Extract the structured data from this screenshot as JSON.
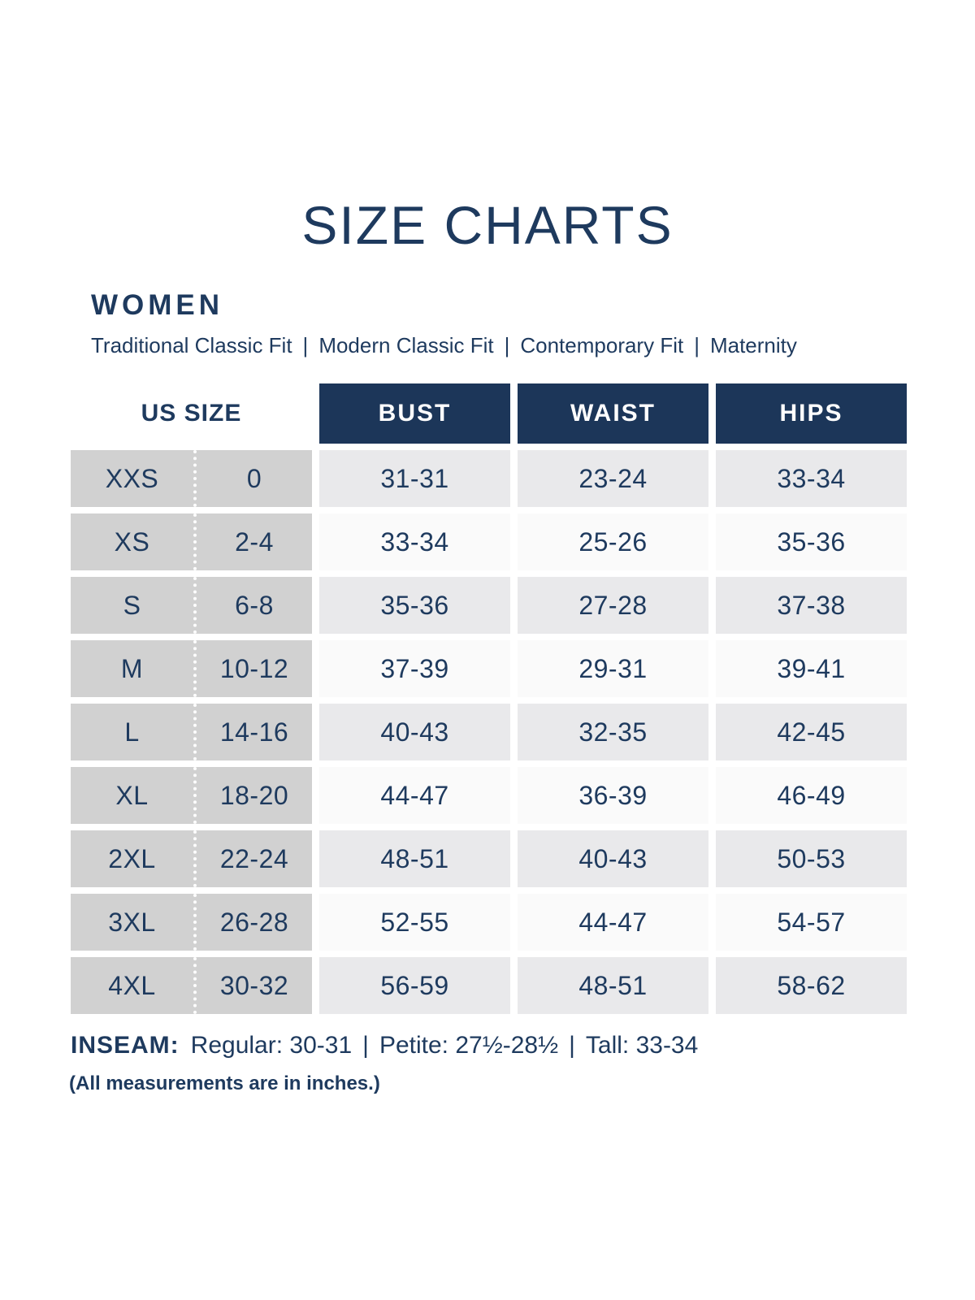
{
  "page": {
    "title": "SIZE CHARTS",
    "section_heading": "WOMEN",
    "separator": "|",
    "fit_types": [
      "Traditional Classic Fit",
      "Modern Classic Fit",
      "Contemporary Fit",
      "Maternity"
    ],
    "inseam_label": "INSEAM:",
    "inseam_regular": "Regular: 30-31",
    "inseam_petite": "Petite: 27½-28½",
    "inseam_tall": "Tall: 33-34",
    "note": "(All measurements are in inches.)"
  },
  "chart_data": {
    "type": "table",
    "title": "SIZE CHARTS",
    "section": "WOMEN",
    "fit_types": [
      "Traditional Classic Fit",
      "Modern Classic Fit",
      "Contemporary Fit",
      "Maternity"
    ],
    "column_headers": {
      "size": "US SIZE",
      "bust": "BUST",
      "waist": "WAIST",
      "hips": "HIPS"
    },
    "rows": [
      {
        "size": "XXS",
        "us": "0",
        "bust": "31-31",
        "waist": "23-24",
        "hips": "33-34"
      },
      {
        "size": "XS",
        "us": "2-4",
        "bust": "33-34",
        "waist": "25-26",
        "hips": "35-36"
      },
      {
        "size": "S",
        "us": "6-8",
        "bust": "35-36",
        "waist": "27-28",
        "hips": "37-38"
      },
      {
        "size": "M",
        "us": "10-12",
        "bust": "37-39",
        "waist": "29-31",
        "hips": "39-41"
      },
      {
        "size": "L",
        "us": "14-16",
        "bust": "40-43",
        "waist": "32-35",
        "hips": "42-45"
      },
      {
        "size": "XL",
        "us": "18-20",
        "bust": "44-47",
        "waist": "36-39",
        "hips": "46-49"
      },
      {
        "size": "2XL",
        "us": "22-24",
        "bust": "48-51",
        "waist": "40-43",
        "hips": "50-53"
      },
      {
        "size": "3XL",
        "us": "26-28",
        "bust": "52-55",
        "waist": "44-47",
        "hips": "54-57"
      },
      {
        "size": "4XL",
        "us": "30-32",
        "bust": "56-59",
        "waist": "48-51",
        "hips": "58-62"
      }
    ],
    "inseam": {
      "regular": "30-31",
      "petite": "27½-28½",
      "tall": "33-34"
    },
    "units": "inches"
  },
  "colors": {
    "navy": "#1e3a5e",
    "header_bg": "#1c3659",
    "size_col_bg": "#d1d1d1",
    "row_alt_bg": "#e9e9eb",
    "row_bg": "#fafafa"
  }
}
